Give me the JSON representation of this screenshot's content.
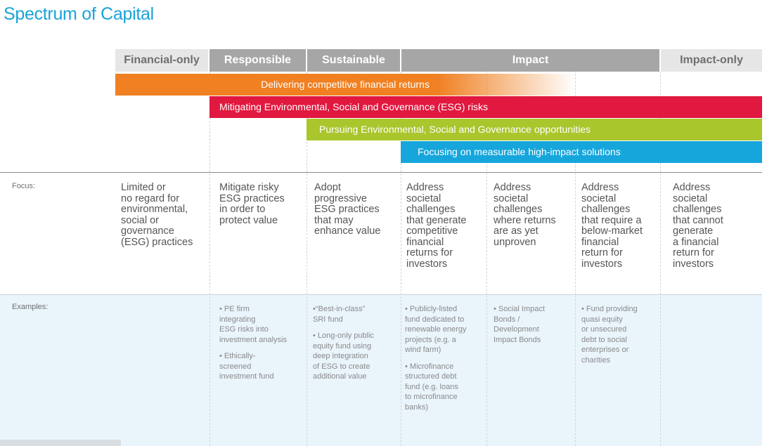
{
  "title": "Spectrum of Capital",
  "categories": {
    "financial_only": "Financial-only",
    "responsible": "Responsible",
    "sustainable": "Sustainable",
    "impact": "Impact",
    "impact_only": "Impact-only"
  },
  "bars": [
    {
      "label": "Delivering competitive financial returns",
      "color": "#f08022"
    },
    {
      "label": "Mitigating Environmental, Social and Governance (ESG) risks",
      "color": "#e1183f"
    },
    {
      "label": "Pursuing Environmental, Social and Governance opportunities",
      "color": "#a9c62c"
    },
    {
      "label": "Focusing on measurable high-impact solutions",
      "color": "#16a6dc"
    }
  ],
  "rows": {
    "focus_label": "Focus:",
    "examples_label": "Examples:"
  },
  "focus": [
    "Limited or\nno regard for\nenvironmental,\nsocial or\ngovernance\n(ESG)  practices",
    "Mitigate risky\nESG practices\nin order to\nprotect value",
    "Adopt\nprogressive\nESG practices\nthat may\nenhance value",
    "Address\nsocietal\nchallenges\nthat generate\ncompetitive\nfinancial\nreturns for\ninvestors",
    "Address\nsocietal\nchallenges\nwhere returns\nare as yet\nunproven",
    "Address\nsocietal\nchallenges\nthat require a\nbelow-market\nfinancial\nreturn for\ninvestors",
    "Address\nsocietal\nchallenges\nthat cannot\ngenerate\na financial\nreturn for\ninvestors"
  ],
  "examples": {
    "responsible": [
      "• PE firm\nintegrating\nESG risks into\ninvestment analysis",
      "• Ethically-\nscreened\ninvestment fund"
    ],
    "sustainable": [
      "•“Best-in-class”\nSRI fund",
      "• Long-only public\nequity fund using\ndeep integration\nof ESG to create\nadditional value"
    ],
    "impact_1": [
      "• Publicly-listed\nfund dedicated to\nrenewable energy\nprojects (e.g. a\nwind farm)",
      "• Microfinance\nstructured debt\nfund (e.g. loans\nto microfinance\nbanks)"
    ],
    "impact_2": [
      "• Social Impact\nBonds /\nDevelopment\nImpact Bonds"
    ],
    "impact_3": [
      "• Fund providing\nquasi equity\nor unsecured\ndebt to social\nenterprises or\ncharities"
    ]
  }
}
